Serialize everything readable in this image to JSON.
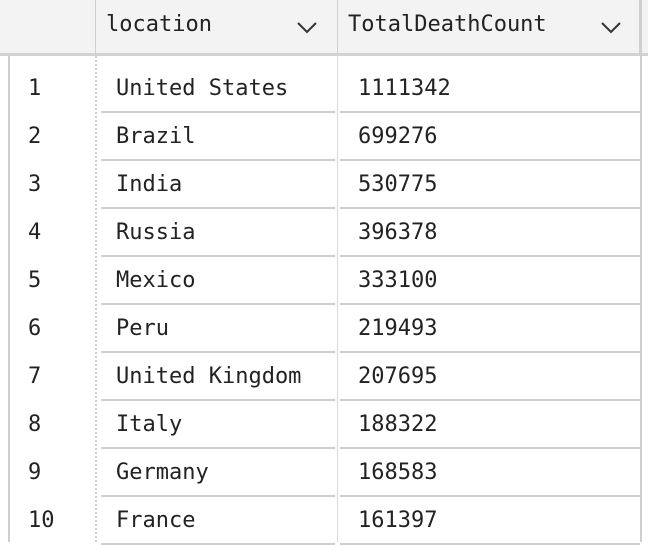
{
  "columns": [
    {
      "label": "location",
      "sort_icon": "chevron-down-icon"
    },
    {
      "label": "TotalDeathCount",
      "sort_icon": "chevron-down-icon"
    }
  ],
  "rows": [
    {
      "index": "1",
      "location": "United States",
      "total": "1111342"
    },
    {
      "index": "2",
      "location": "Brazil",
      "total": "699276"
    },
    {
      "index": "3",
      "location": "India",
      "total": "530775"
    },
    {
      "index": "4",
      "location": "Russia",
      "total": "396378"
    },
    {
      "index": "5",
      "location": "Mexico",
      "total": "333100"
    },
    {
      "index": "6",
      "location": "Peru",
      "total": "219493"
    },
    {
      "index": "7",
      "location": "United Kingdom",
      "total": "207695"
    },
    {
      "index": "8",
      "location": "Italy",
      "total": "188322"
    },
    {
      "index": "9",
      "location": "Germany",
      "total": "168583"
    },
    {
      "index": "10",
      "location": "France",
      "total": "161397"
    }
  ]
}
